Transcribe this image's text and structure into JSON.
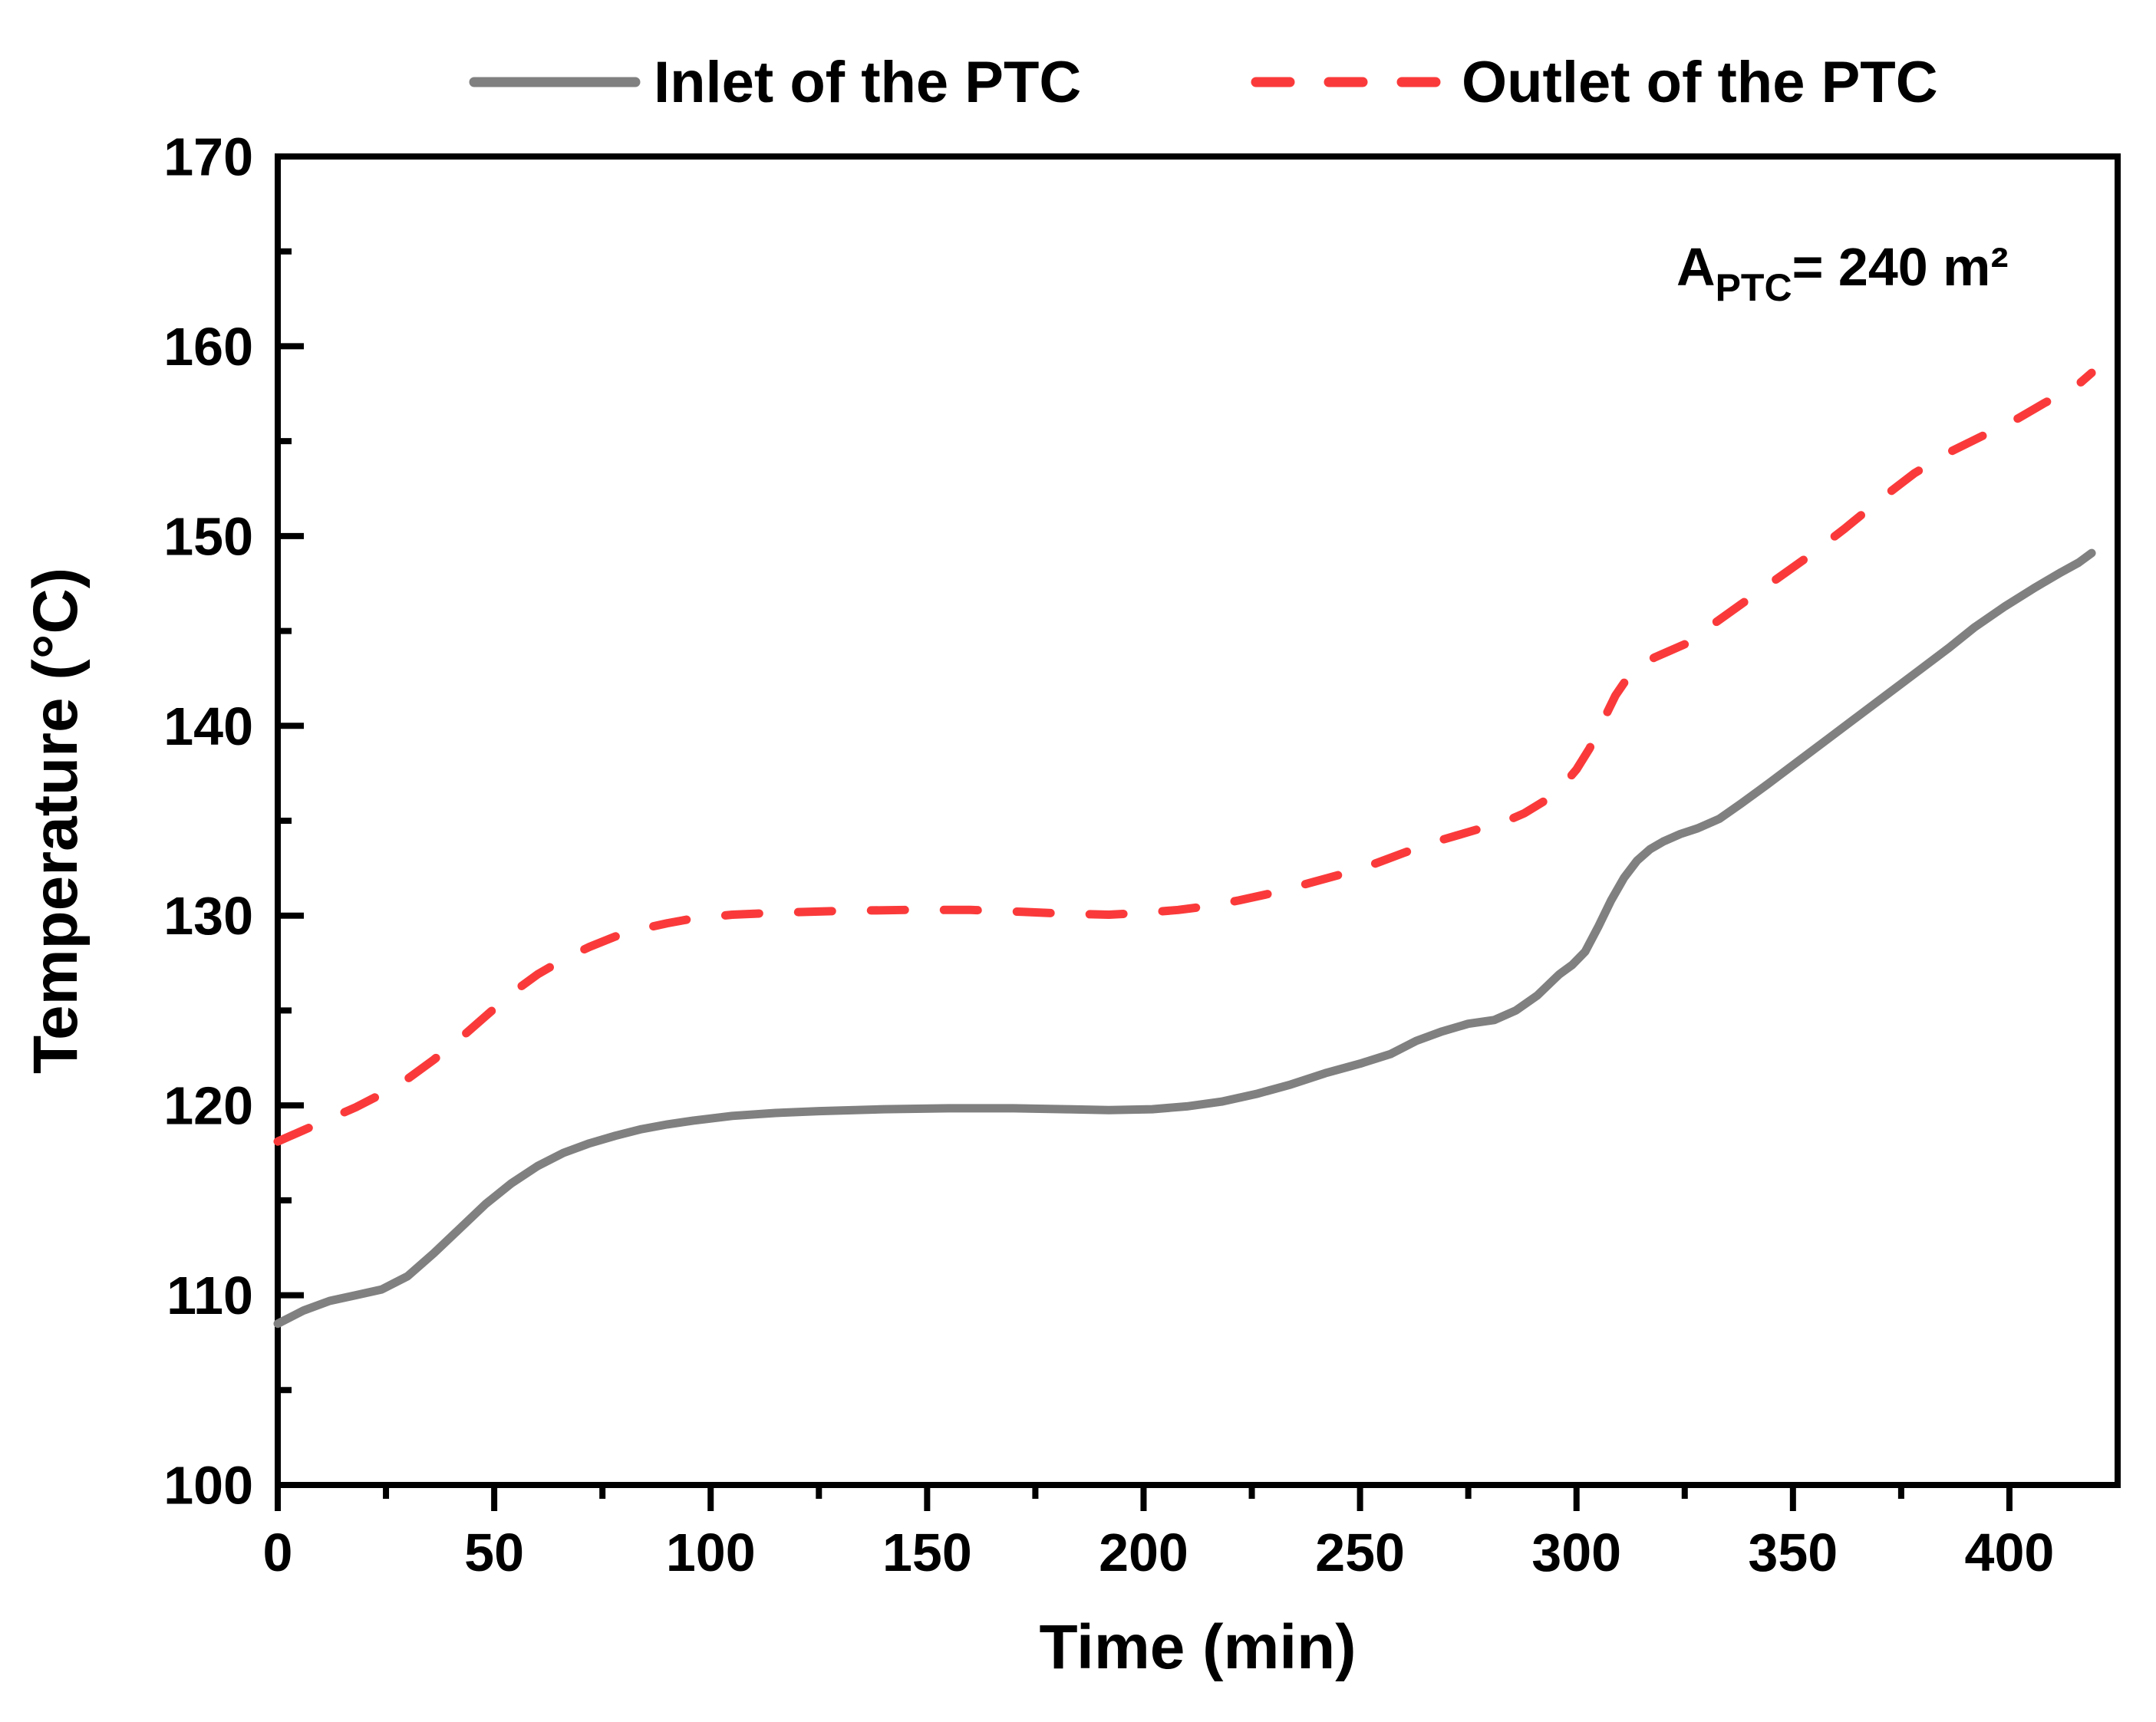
{
  "legend": {
    "items": [
      {
        "label": "Inlet of the PTC"
      },
      {
        "label": "Outlet of the PTC"
      }
    ]
  },
  "annotation": {
    "prefix": "A",
    "sub": "PTC",
    "rest": "= 240 m²"
  },
  "chart_data": {
    "type": "line",
    "title": "",
    "xlabel": "Time (min)",
    "ylabel": "Temperature (°C)",
    "xlim": [
      0,
      425
    ],
    "ylim": [
      100,
      170
    ],
    "grid": false,
    "legend_position": "top",
    "x_major_ticks": [
      0,
      50,
      100,
      150,
      200,
      250,
      300,
      350,
      400
    ],
    "x_minor_ticks": [
      25,
      75,
      125,
      175,
      225,
      275,
      325,
      375
    ],
    "y_major_ticks": [
      100,
      110,
      120,
      130,
      140,
      150,
      160,
      170
    ],
    "y_minor_ticks": [
      105,
      115,
      125,
      135,
      145,
      155,
      165
    ],
    "series": [
      {
        "name": "Inlet of the PTC",
        "color": "#808080",
        "style": "solid",
        "points": [
          [
            0,
            108.5
          ],
          [
            6,
            109.2
          ],
          [
            12,
            109.7
          ],
          [
            18,
            110.0
          ],
          [
            24,
            110.3
          ],
          [
            30,
            111.0
          ],
          [
            36,
            112.2
          ],
          [
            42,
            113.5
          ],
          [
            48,
            114.8
          ],
          [
            54,
            115.9
          ],
          [
            60,
            116.8
          ],
          [
            66,
            117.5
          ],
          [
            72,
            118.0
          ],
          [
            78,
            118.4
          ],
          [
            84,
            118.75
          ],
          [
            90,
            119.0
          ],
          [
            96,
            119.2
          ],
          [
            105,
            119.45
          ],
          [
            115,
            119.6
          ],
          [
            125,
            119.7
          ],
          [
            140,
            119.8
          ],
          [
            155,
            119.85
          ],
          [
            170,
            119.85
          ],
          [
            182,
            119.8
          ],
          [
            192,
            119.75
          ],
          [
            202,
            119.8
          ],
          [
            210,
            119.95
          ],
          [
            218,
            120.2
          ],
          [
            226,
            120.6
          ],
          [
            234,
            121.1
          ],
          [
            242,
            121.7
          ],
          [
            250,
            122.2
          ],
          [
            257,
            122.7
          ],
          [
            263,
            123.4
          ],
          [
            269,
            123.9
          ],
          [
            275,
            124.3
          ],
          [
            281,
            124.5
          ],
          [
            286,
            125.0
          ],
          [
            291,
            125.8
          ],
          [
            296,
            126.9
          ],
          [
            299,
            127.4
          ],
          [
            302,
            128.1
          ],
          [
            305,
            129.4
          ],
          [
            308,
            130.8
          ],
          [
            311,
            132.0
          ],
          [
            314,
            132.9
          ],
          [
            317,
            133.5
          ],
          [
            320,
            133.9
          ],
          [
            324,
            134.3
          ],
          [
            328,
            134.6
          ],
          [
            333,
            135.1
          ],
          [
            338,
            135.9
          ],
          [
            344,
            136.9
          ],
          [
            351,
            138.1
          ],
          [
            358,
            139.3
          ],
          [
            365,
            140.5
          ],
          [
            372,
            141.7
          ],
          [
            379,
            142.9
          ],
          [
            386,
            144.1
          ],
          [
            392,
            145.2
          ],
          [
            399,
            146.3
          ],
          [
            406,
            147.3
          ],
          [
            412,
            148.1
          ],
          [
            416,
            148.6
          ],
          [
            419,
            149.1
          ]
        ]
      },
      {
        "name": "Outlet of the PTC",
        "color": "#fa3a3a",
        "style": "dashed",
        "points": [
          [
            0,
            118.1
          ],
          [
            6,
            118.7
          ],
          [
            12,
            119.3
          ],
          [
            18,
            119.9
          ],
          [
            24,
            120.6
          ],
          [
            30,
            121.4
          ],
          [
            36,
            122.4
          ],
          [
            42,
            123.5
          ],
          [
            48,
            124.7
          ],
          [
            54,
            125.9
          ],
          [
            60,
            126.9
          ],
          [
            66,
            127.7
          ],
          [
            72,
            128.35
          ],
          [
            78,
            128.9
          ],
          [
            84,
            129.3
          ],
          [
            90,
            129.6
          ],
          [
            96,
            129.85
          ],
          [
            105,
            130.05
          ],
          [
            115,
            130.15
          ],
          [
            130,
            130.25
          ],
          [
            145,
            130.3
          ],
          [
            160,
            130.3
          ],
          [
            172,
            130.2
          ],
          [
            182,
            130.1
          ],
          [
            192,
            130.05
          ],
          [
            200,
            130.15
          ],
          [
            208,
            130.3
          ],
          [
            215,
            130.5
          ],
          [
            222,
            130.8
          ],
          [
            230,
            131.2
          ],
          [
            238,
            131.7
          ],
          [
            246,
            132.2
          ],
          [
            253,
            132.7
          ],
          [
            260,
            133.3
          ],
          [
            266,
            133.8
          ],
          [
            272,
            134.2
          ],
          [
            278,
            134.6
          ],
          [
            283,
            134.9
          ],
          [
            288,
            135.4
          ],
          [
            293,
            136.1
          ],
          [
            297,
            136.9
          ],
          [
            300,
            137.7
          ],
          [
            303,
            138.8
          ],
          [
            306,
            140.2
          ],
          [
            309,
            141.6
          ],
          [
            312,
            142.6
          ],
          [
            315,
            143.2
          ],
          [
            318,
            143.6
          ],
          [
            321,
            143.9
          ],
          [
            325,
            144.3
          ],
          [
            330,
            145.1
          ],
          [
            338,
            146.4
          ],
          [
            346,
            147.7
          ],
          [
            354,
            149.0
          ],
          [
            362,
            150.4
          ],
          [
            370,
            151.9
          ],
          [
            378,
            153.3
          ],
          [
            386,
            154.4
          ],
          [
            394,
            155.3
          ],
          [
            402,
            156.2
          ],
          [
            408,
            157.0
          ],
          [
            413,
            157.6
          ],
          [
            416,
            158.0
          ],
          [
            419,
            158.6
          ]
        ]
      }
    ]
  }
}
